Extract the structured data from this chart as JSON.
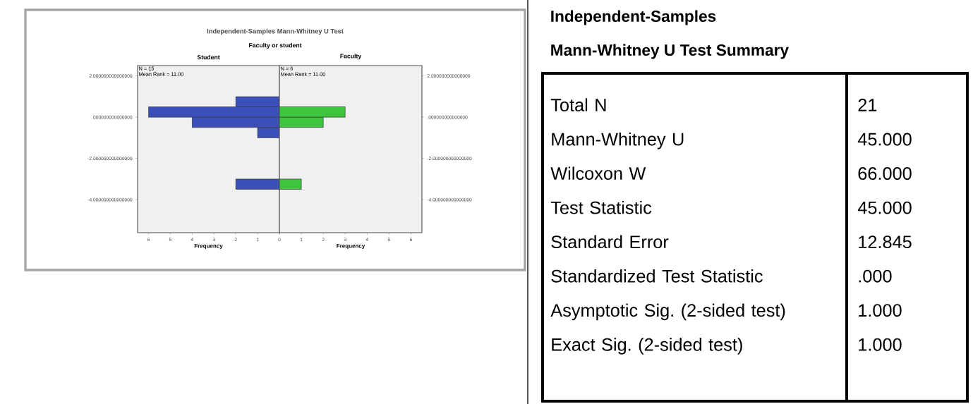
{
  "chart_data": [
    {
      "type": "other",
      "title": "Independent-Samples Mann-Whitney U Test",
      "subtitle": "Faculty or student"
    },
    {
      "type": "histogram",
      "orientation": "horizontal",
      "title": "Student",
      "xlabel": "Frequency",
      "color": "#3b4fb8",
      "bins": [
        -3.5,
        -3,
        -2.5,
        -2,
        -1.5,
        -1,
        -0.5,
        0,
        0.5,
        1
      ],
      "values": [
        2,
        0,
        0,
        0,
        0,
        1,
        4,
        6,
        2
      ],
      "xlim": [
        6.5,
        0
      ],
      "xticks": [
        0,
        1,
        2,
        3,
        4,
        5,
        6
      ],
      "ylim": [
        -5.6,
        2.5
      ],
      "yticks": [
        {
          "value": 2,
          "label": "2.000000000000000"
        },
        {
          "value": 0,
          "label": ".000000000000000"
        },
        {
          "value": -2,
          "label": "-2.000000000000000"
        },
        {
          "value": -4,
          "label": "-4.000000000000000"
        }
      ],
      "annotations": [
        "N = 15",
        "Mean Rank = 11.00"
      ]
    },
    {
      "type": "histogram",
      "orientation": "horizontal",
      "title": "Faculty",
      "xlabel": "Frequency",
      "color": "#3ec43e",
      "bins": [
        -3.5,
        -3,
        -2.5,
        -2,
        -1.5,
        -1,
        -0.5,
        0,
        0.5,
        1
      ],
      "values": [
        1,
        0,
        0,
        0,
        0,
        0,
        2,
        3,
        0
      ],
      "xlim": [
        0,
        6.5
      ],
      "xticks": [
        {
          "value": 0,
          "label": null
        },
        1,
        2,
        3,
        4,
        5,
        6
      ],
      "ylim": [
        -5.6,
        2.5
      ],
      "yticks": [
        {
          "value": 2,
          "label": "2.000000000000000"
        },
        {
          "value": 0,
          "label": ".000000000000000"
        },
        {
          "value": -2,
          "label": "-2.000000000000000"
        },
        {
          "value": -4,
          "label": "-4.000000000000000"
        }
      ],
      "annotations": [
        "N = 6",
        "Mean Rank = 11.00"
      ]
    },
    {
      "type": "other",
      "title": "Independent-Samples",
      "subtitle": "Mann-Whitney U Test Summary",
      "categories": [
        "Total N",
        "Mann-Whitney U",
        "Wilcoxon W",
        "Test Statistic",
        "Standard Error",
        "Standardized Test Statistic",
        "Asymptotic Sig. (2-sided test)",
        "Exact Sig. (2-sided test)"
      ],
      "value_labels": [
        "21",
        "45.000",
        "66.000",
        "45.000",
        "12.845",
        ".000",
        "1.000",
        "1.000"
      ]
    }
  ]
}
